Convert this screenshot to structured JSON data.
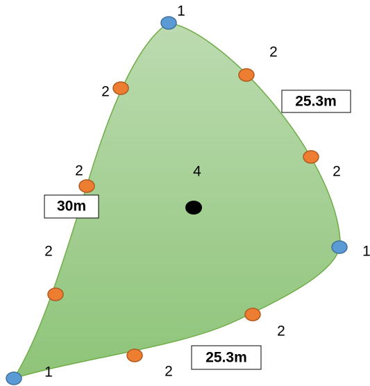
{
  "vertices": [
    {
      "label": "1"
    },
    {
      "label": "1"
    },
    {
      "label": "1"
    }
  ],
  "edge_points": [
    {
      "label": "2"
    },
    {
      "label": "2"
    },
    {
      "label": "2"
    },
    {
      "label": "2"
    },
    {
      "label": "2"
    },
    {
      "label": "2"
    },
    {
      "label": "2"
    }
  ],
  "center": {
    "label": "4"
  },
  "edges": [
    {
      "label": "25.3m"
    },
    {
      "label": "30m"
    },
    {
      "label": "25.3m"
    }
  ]
}
